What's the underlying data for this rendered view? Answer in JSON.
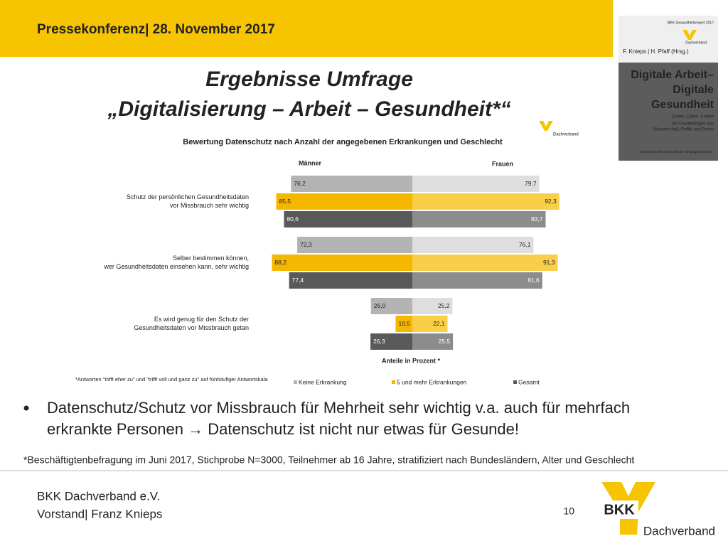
{
  "header": "Pressekonferenz| 28. November 2017",
  "title": [
    "Ergebnisse Umfrage",
    "„Digitalisierung – Arbeit – Gesundheit*“"
  ],
  "book": {
    "top": "BKK Gesundheitsreport 2017",
    "logo": "Dachverband",
    "editors": "F. Knieps | H. Pfaff (Hrsg.)",
    "title": [
      "Digitale Arbeit–",
      "Digitale",
      "Gesundheit"
    ],
    "sub": [
      "Zahlen, Daten, Fakten",
      "Mit Gastbeiträgen aus",
      "Wissenschaft, Politik und Praxis"
    ],
    "publisher": "Medizinisch Wissenschaftliche Verlagsgesellschaft"
  },
  "small_logo": "Dachverband",
  "chart_data": {
    "type": "butterfly",
    "title": "Bewertung Datenschutz nach Anzahl der angegebenen Erkrankungen und Geschlecht",
    "left_label": "Männer",
    "right_label": "Frauen",
    "xlabel": "Anteile  in Prozent *",
    "note": "*Antworten \"trifft eher zu\" und \"trifft voll und ganz zu\" auf fünfstufiger Antwortskala",
    "categories": [
      [
        "Schutz der persönlichen Gesundheitsdaten",
        "vor Missbrauch sehr wichtig"
      ],
      [
        "Selber bestimmen können,",
        "wer Gesundheitsdaten einsehen kann, sehr wichtig"
      ],
      [
        "Es wird genug für den Schutz der",
        "Gesundheitsdaten vor Missbrauch getan"
      ]
    ],
    "xlim": [
      0,
      100
    ],
    "series": [
      {
        "name": "Keine Erkrankung",
        "color": "#b3b3b3",
        "right_color": "#dedede",
        "values": [
          76.2,
          72.3,
          26.0
        ],
        "value_labels": [
          "76,2",
          "72,3",
          "26,0"
        ],
        "right_values": [
          79.7,
          76.1,
          25.2
        ],
        "right_value_labels": [
          "79,7",
          "76,1",
          "25,2"
        ]
      },
      {
        "name": "5 und mehr Erkrankungen",
        "color": "#f5b800",
        "right_color": "#f9cf4a",
        "values": [
          85.5,
          88.2,
          10.5
        ],
        "value_labels": [
          "85,5",
          "88,2",
          "10,5"
        ],
        "right_values": [
          92.3,
          91.3,
          22.1
        ],
        "right_value_labels": [
          "92,3",
          "91,3",
          "22,1"
        ]
      },
      {
        "name": "Gesamt",
        "color": "#595959",
        "right_color": "#8c8c8c",
        "values": [
          80.6,
          77.4,
          26.3
        ],
        "value_labels": [
          "80,6",
          "77,4",
          "26,3"
        ],
        "right_values": [
          83.7,
          81.6,
          25.5
        ],
        "right_value_labels": [
          "83,7",
          "81,6",
          "25,5"
        ]
      }
    ]
  },
  "bullet": [
    "Datenschutz/Schutz vor Missbrauch für Mehrheit sehr wichtig v.a. auch für mehrfach",
    "erkrankte Personen → Datenschutz ist nicht nur etwas für Gesunde!"
  ],
  "footnote": "*Beschäftigtenbefragung im Juni 2017, Stichprobe N=3000, Teilnehmer ab 16 Jahre, stratifiziert nach Bundesländern, Alter und Geschlecht",
  "footer": [
    "BKK Dachverband e.V.",
    "Vorstand| Franz Knieps"
  ],
  "page_number": "10",
  "logo": {
    "name": "BKK",
    "sub": "Dachverband"
  }
}
